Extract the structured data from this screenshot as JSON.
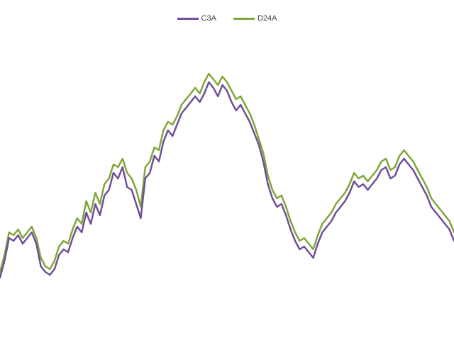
{
  "chart_data": {
    "type": "line",
    "title": "",
    "xlabel": "",
    "ylabel": "",
    "x_range": [
      0,
      100
    ],
    "ylim": [
      0,
      100
    ],
    "grid": false,
    "legend_position": "top-center",
    "series": [
      {
        "name": "C3A",
        "color": "#6f4f9a",
        "x": [
          0,
          1,
          2,
          3,
          4,
          5,
          6,
          7,
          8,
          9,
          10,
          11,
          12,
          13,
          14,
          15,
          16,
          17,
          18,
          19,
          20,
          21,
          22,
          23,
          24,
          25,
          26,
          27,
          28,
          29,
          30,
          31,
          32,
          33,
          34,
          35,
          36,
          37,
          38,
          39,
          40,
          41,
          42,
          43,
          44,
          45,
          46,
          47,
          48,
          49,
          50,
          51,
          52,
          53,
          54,
          55,
          56,
          57,
          58,
          59,
          60,
          61,
          62,
          63,
          64,
          65,
          66,
          67,
          68,
          69,
          70,
          71,
          72,
          73,
          74,
          75,
          76,
          77,
          78,
          79,
          80,
          81,
          82,
          83,
          84,
          85,
          86,
          87,
          88,
          89,
          90,
          91,
          92,
          93,
          94,
          95,
          96,
          97,
          98,
          99,
          100
        ],
        "y": [
          17,
          23,
          31,
          30,
          32,
          29,
          31,
          33,
          29,
          21,
          19,
          18,
          20,
          25,
          27,
          26,
          31,
          35,
          33,
          40,
          36,
          43,
          39,
          46,
          48,
          54,
          52,
          56,
          49,
          48,
          43,
          38,
          52,
          54,
          60,
          58,
          65,
          69,
          67,
          71,
          75,
          77,
          79,
          81,
          79,
          82,
          86,
          84,
          81,
          85,
          83,
          79,
          76,
          78,
          75,
          72,
          68,
          64,
          58,
          50,
          45,
          42,
          43,
          39,
          34,
          30,
          27,
          28,
          26,
          24,
          29,
          33,
          35,
          37,
          40,
          42,
          44,
          47,
          51,
          49,
          50,
          48,
          50,
          52,
          55,
          56,
          52,
          53,
          57,
          59,
          57,
          55,
          52,
          49,
          46,
          42,
          40,
          38,
          36,
          34,
          30
        ]
      },
      {
        "name": "D24A",
        "color": "#80a63a",
        "x": [
          0,
          1,
          2,
          3,
          4,
          5,
          6,
          7,
          8,
          9,
          10,
          11,
          12,
          13,
          14,
          15,
          16,
          17,
          18,
          19,
          20,
          21,
          22,
          23,
          24,
          25,
          26,
          27,
          28,
          29,
          30,
          31,
          32,
          33,
          34,
          35,
          36,
          37,
          38,
          39,
          40,
          41,
          42,
          43,
          44,
          45,
          46,
          47,
          48,
          49,
          50,
          51,
          52,
          53,
          54,
          55,
          56,
          57,
          58,
          59,
          60,
          61,
          62,
          63,
          64,
          65,
          66,
          67,
          68,
          69,
          70,
          71,
          72,
          73,
          74,
          75,
          76,
          77,
          78,
          79,
          80,
          81,
          82,
          83,
          84,
          85,
          86,
          87,
          88,
          89,
          90,
          91,
          92,
          93,
          94,
          95,
          96,
          97,
          98,
          99,
          100
        ],
        "y": [
          19,
          25,
          33,
          32,
          34,
          31,
          33,
          35,
          31,
          24,
          21,
          20,
          23,
          28,
          30,
          29,
          34,
          38,
          36,
          44,
          40,
          47,
          43,
          50,
          52,
          57,
          56,
          59,
          54,
          52,
          48,
          42,
          56,
          58,
          63,
          62,
          69,
          72,
          71,
          74,
          78,
          80,
          82,
          84,
          82,
          86,
          89,
          87,
          85,
          88,
          86,
          83,
          80,
          81,
          78,
          75,
          71,
          66,
          61,
          53,
          48,
          45,
          46,
          42,
          37,
          33,
          30,
          31,
          29,
          27,
          32,
          36,
          38,
          40,
          43,
          45,
          47,
          50,
          54,
          52,
          53,
          51,
          53,
          55,
          58,
          59,
          55,
          56,
          60,
          62,
          60,
          58,
          55,
          52,
          49,
          45,
          43,
          41,
          39,
          37,
          33
        ]
      }
    ]
  }
}
